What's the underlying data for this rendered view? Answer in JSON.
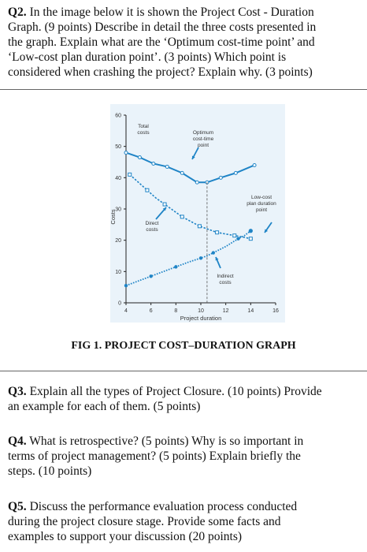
{
  "questions": {
    "q2": {
      "number": "Q2.",
      "lines": [
        " In the image below it is shown the Project Cost - Duration",
        "Graph. (9 points) Describe in detail the three costs presented in",
        "the graph. Explain what are the ‘Optimum cost-time point’ and",
        "‘Low-cost plan duration point’. (3 points) Which point is",
        "considered when crashing the project? Explain why. (3 points)"
      ]
    },
    "q3": {
      "number": "Q3.",
      "lines": [
        " Explain all the types of Project Closure. (10 points) Provide",
        "an example for each of them. (5 points)"
      ]
    },
    "q4": {
      "number": "Q4.",
      "lines": [
        " What is retrospective? (5 points) Why is so important in",
        "terms of project management? (5 points) Explain briefly the",
        "steps. (10 points)"
      ]
    },
    "q5": {
      "number": "Q5.",
      "lines": [
        " Discuss the performance evaluation process conducted",
        "during the project closure stage. Provide some facts and",
        "examples to support your discussion (20 points)"
      ]
    }
  },
  "figure_caption": "FIG 1. PROJECT COST–DURATION GRAPH",
  "chart_data": {
    "type": "line",
    "xlabel": "Project duration",
    "ylabel": "Costs",
    "xlim": [
      4,
      16
    ],
    "ylim": [
      0,
      60
    ],
    "x_ticks": [
      "4",
      "6",
      "8",
      "10",
      "12",
      "14",
      "16"
    ],
    "y_ticks": [
      "0",
      "10",
      "20",
      "30",
      "40",
      "50",
      "60"
    ],
    "grid": false,
    "series": [
      {
        "name": "Total costs",
        "x": [
          4,
          5.1,
          6.2,
          7.3,
          8.5,
          9.7,
          10.5,
          11.6,
          12.8,
          14.3
        ],
        "values": [
          48,
          46.5,
          44.5,
          43.5,
          41.5,
          38.5,
          38.5,
          40,
          41.5,
          44
        ],
        "color": "#1f84c6"
      },
      {
        "name": "Direct costs",
        "x": [
          4.3,
          5,
          5.7,
          6.4,
          7.1,
          7.8,
          8.5,
          9.2,
          9.9,
          10.6,
          11.3,
          12,
          12.7,
          13.4,
          14
        ],
        "values": [
          41,
          38.5,
          36,
          33.5,
          31.5,
          29.5,
          27.5,
          26,
          24.5,
          23.5,
          22.5,
          22,
          21.5,
          21,
          20.5
        ],
        "color": "#1f84c6"
      },
      {
        "name": "Indirect costs",
        "x": [
          4,
          5,
          6,
          7,
          8,
          9,
          10,
          10.5,
          11,
          12,
          13,
          13.5,
          14
        ],
        "values": [
          5.5,
          7,
          8.5,
          10,
          11.5,
          13,
          14.3,
          15,
          16,
          18,
          20.5,
          21.5,
          23
        ],
        "color": "#1f84c6"
      }
    ],
    "annotations": [
      {
        "text": "Total costs",
        "lines": [
          "Total",
          "costs"
        ]
      },
      {
        "text": "Optimum cost-time point",
        "lines": [
          "Optimum",
          "cost-time",
          "point"
        ]
      },
      {
        "text": "Low-cost plan duration point",
        "lines": [
          "Low-cost",
          "plan duration",
          "point"
        ]
      },
      {
        "text": "Direct costs",
        "lines": [
          "Direct",
          "costs"
        ]
      },
      {
        "text": "Indirect costs",
        "lines": [
          "Indirect",
          "costs"
        ]
      }
    ],
    "marked_points": [
      {
        "name": "Optimum cost-time point",
        "x": 10.5,
        "y": 38.5
      },
      {
        "name": "Low-cost plan duration point",
        "x": 14,
        "y": 23
      }
    ]
  }
}
